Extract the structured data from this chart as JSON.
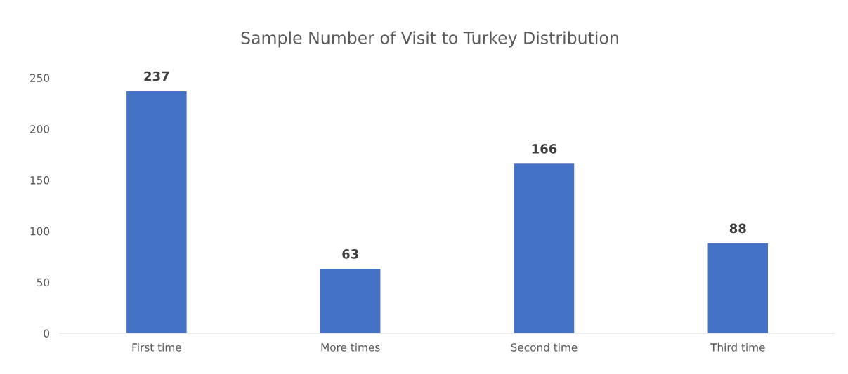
{
  "chart_data": {
    "type": "bar",
    "title": "Sample Number of Visit to Turkey Distribution",
    "categories": [
      "First time",
      "More times",
      "Second time",
      "Third time"
    ],
    "values": [
      237,
      63,
      166,
      88
    ],
    "color": "#4472c4",
    "ylim": [
      0,
      250
    ],
    "yticks": [
      0,
      50,
      100,
      150,
      200,
      250
    ],
    "grid": false,
    "data_labels": true
  }
}
